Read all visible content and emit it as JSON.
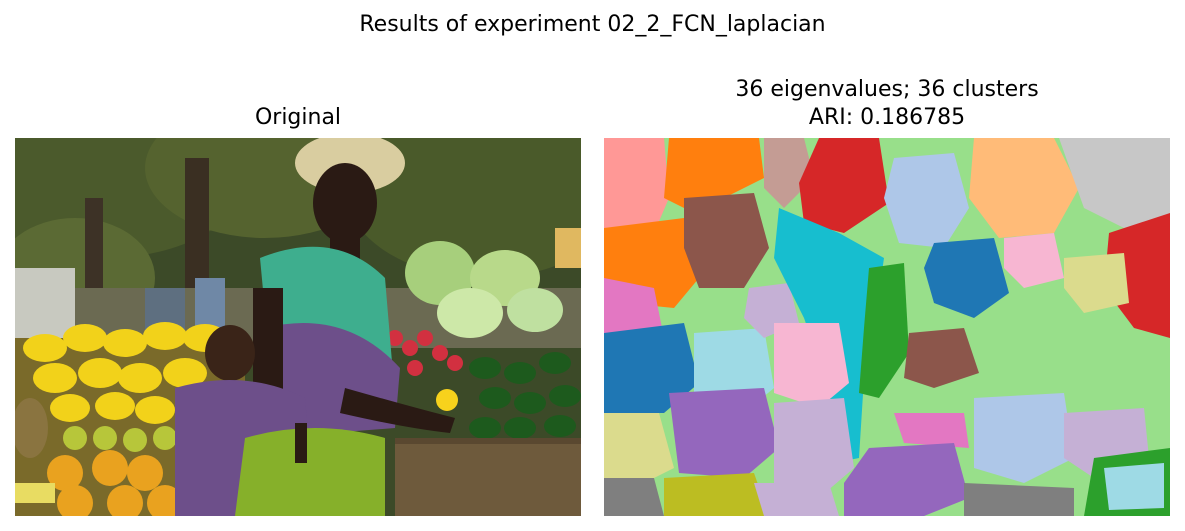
{
  "figure": {
    "suptitle": "Results of experiment 02_2_FCN_laplacian"
  },
  "left_panel": {
    "title": "Original",
    "image_subject": "woman carrying a baby on her back beside a fruit and vegetable market stall"
  },
  "right_panel": {
    "title_line1": "36 eigenvalues; 36 clusters",
    "title_line2": "ARI: 0.186785",
    "num_eigenvalues": 36,
    "num_clusters": 36,
    "ari": 0.186785,
    "image_subject": "segmentation map with colored cluster regions"
  },
  "colors": {
    "background": "#ffffff",
    "cluster_palette": [
      "#1f77b4",
      "#aec7e8",
      "#ff7f0e",
      "#ffbb78",
      "#2ca02c",
      "#98df8a",
      "#d62728",
      "#ff9896",
      "#9467bd",
      "#c5b0d5",
      "#8c564b",
      "#c49c94",
      "#e377c2",
      "#f7b6d2",
      "#7f7f7f",
      "#c7c7c7",
      "#bcbd22",
      "#dbdb8d",
      "#17becf",
      "#9edae5"
    ]
  }
}
